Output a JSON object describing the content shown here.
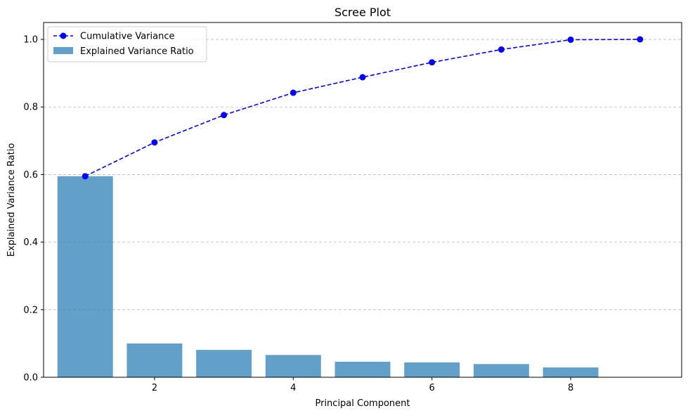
{
  "chart_data": {
    "type": "bar",
    "title": "Scree Plot",
    "xlabel": "Principal Component",
    "ylabel": "Explained Variance Ratio",
    "xlim": [
      0.4,
      9.6
    ],
    "ylim": [
      0,
      1.05
    ],
    "x_ticks": [
      2,
      4,
      6,
      8
    ],
    "y_ticks": [
      0.0,
      0.2,
      0.4,
      0.6,
      0.8,
      1.0
    ],
    "y_grid": true,
    "legend_position": "top-left",
    "x": [
      1,
      2,
      3,
      4,
      5,
      6,
      7,
      8,
      9
    ],
    "series": [
      {
        "name": "Explained Variance Ratio",
        "kind": "bar",
        "color": "#1f77b4",
        "opacity": 0.7,
        "values": [
          0.595,
          0.1,
          0.081,
          0.066,
          0.046,
          0.044,
          0.039,
          0.029,
          0.001
        ]
      },
      {
        "name": "Cumulative Variance",
        "kind": "line",
        "color": "#0000ff",
        "linestyle": "dashed",
        "marker": "circle",
        "values": [
          0.595,
          0.695,
          0.776,
          0.842,
          0.888,
          0.932,
          0.97,
          0.999,
          1.0
        ]
      }
    ]
  }
}
